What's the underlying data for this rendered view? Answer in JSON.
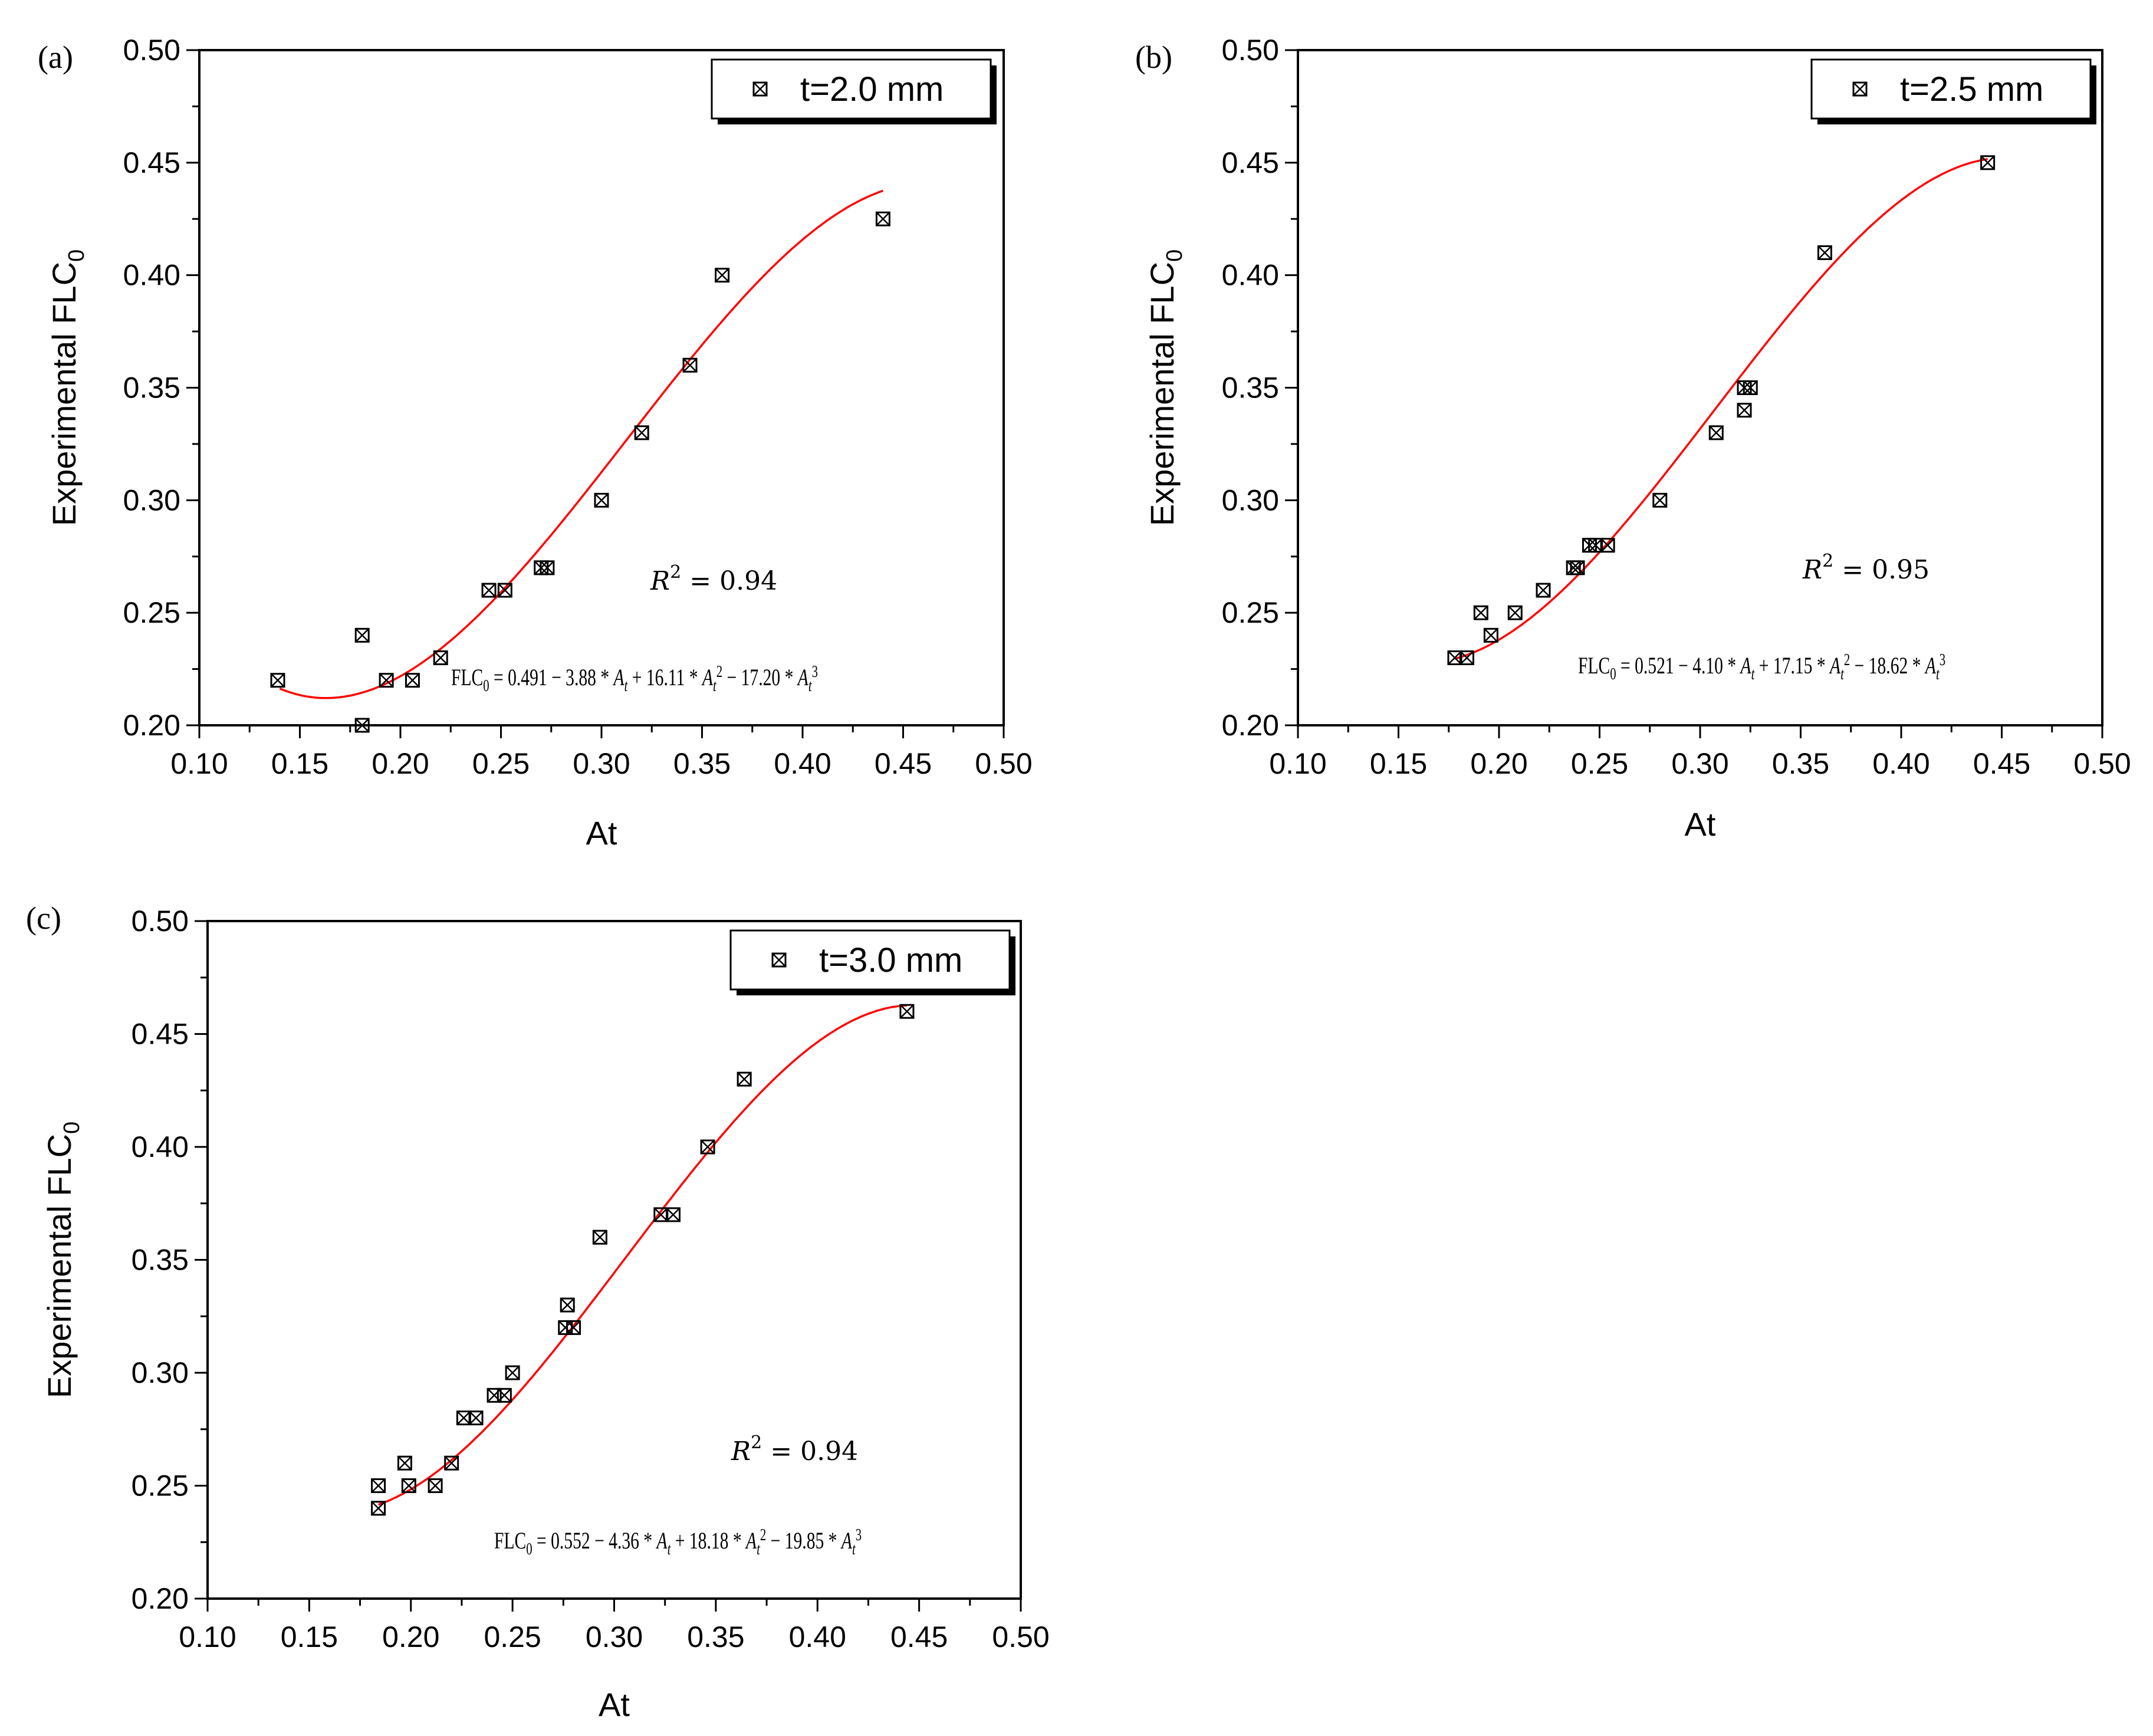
{
  "chart_data": [
    {
      "type": "scatter",
      "panel_label": "(a)",
      "legend": "t=2.0 mm",
      "legend_position": "top-right",
      "xlabel": "At",
      "ylabel_main": "Experimental FLC",
      "ylabel_sub": "0",
      "xlim": [
        0.1,
        0.5
      ],
      "ylim": [
        0.2,
        0.5
      ],
      "xticks": [
        "0.10",
        "0.15",
        "0.20",
        "0.25",
        "0.30",
        "0.35",
        "0.40",
        "0.45",
        "0.50"
      ],
      "yticks": [
        "0.20",
        "0.25",
        "0.30",
        "0.35",
        "0.40",
        "0.45",
        "0.50"
      ],
      "r2_label": "R",
      "r2_exp": "2",
      "r2_value": "= 0.94",
      "equation": {
        "lhs": "FLC",
        "lhs_sub": "0",
        "c0": "0.491",
        "c1": "3.88",
        "c2": "16.11",
        "c3": "17.20",
        "var": "A",
        "var_sub": "t"
      },
      "fit": {
        "coeffs": [
          0.491,
          -3.88,
          16.11,
          -17.2
        ],
        "x_range": [
          0.14,
          0.44
        ]
      },
      "points": [
        [
          0.139,
          0.22
        ],
        [
          0.181,
          0.24
        ],
        [
          0.181,
          0.2
        ],
        [
          0.193,
          0.22
        ],
        [
          0.206,
          0.22
        ],
        [
          0.22,
          0.23
        ],
        [
          0.244,
          0.26
        ],
        [
          0.252,
          0.26
        ],
        [
          0.27,
          0.27
        ],
        [
          0.273,
          0.27
        ],
        [
          0.3,
          0.3
        ],
        [
          0.32,
          0.33
        ],
        [
          0.344,
          0.36
        ],
        [
          0.36,
          0.4
        ],
        [
          0.44,
          0.425
        ]
      ]
    },
    {
      "type": "scatter",
      "panel_label": "(b)",
      "legend": "t=2.5 mm",
      "legend_position": "top-right",
      "xlabel": "At",
      "ylabel_main": "Experimental FLC",
      "ylabel_sub": "0",
      "xlim": [
        0.1,
        0.5
      ],
      "ylim": [
        0.2,
        0.5
      ],
      "xticks": [
        "0.10",
        "0.15",
        "0.20",
        "0.25",
        "0.30",
        "0.35",
        "0.40",
        "0.45",
        "0.50"
      ],
      "yticks": [
        "0.20",
        "0.25",
        "0.30",
        "0.35",
        "0.40",
        "0.45",
        "0.50"
      ],
      "r2_label": "R",
      "r2_exp": "2",
      "r2_value": "= 0.95",
      "equation": {
        "lhs": "FLC",
        "lhs_sub": "0",
        "c0": "0.521",
        "c1": "4.10",
        "c2": "17.15",
        "c3": "18.62",
        "var": "A",
        "var_sub": "t"
      },
      "fit": {
        "coeffs": [
          0.521,
          -4.1,
          17.15,
          -18.62
        ],
        "x_range": [
          0.178,
          0.443
        ]
      },
      "points": [
        [
          0.178,
          0.23
        ],
        [
          0.184,
          0.23
        ],
        [
          0.191,
          0.25
        ],
        [
          0.196,
          0.24
        ],
        [
          0.208,
          0.25
        ],
        [
          0.222,
          0.26
        ],
        [
          0.237,
          0.27
        ],
        [
          0.239,
          0.27
        ],
        [
          0.245,
          0.28
        ],
        [
          0.248,
          0.28
        ],
        [
          0.254,
          0.28
        ],
        [
          0.28,
          0.3
        ],
        [
          0.308,
          0.33
        ],
        [
          0.322,
          0.35
        ],
        [
          0.322,
          0.34
        ],
        [
          0.325,
          0.35
        ],
        [
          0.362,
          0.41
        ],
        [
          0.443,
          0.45
        ]
      ]
    },
    {
      "type": "scatter",
      "panel_label": "(c)",
      "legend": "t=3.0 mm",
      "legend_position": "top-right",
      "xlabel": "At",
      "ylabel_main": "Experimental FLC",
      "ylabel_sub": "0",
      "xlim": [
        0.1,
        0.5
      ],
      "ylim": [
        0.2,
        0.5
      ],
      "xticks": [
        "0.10",
        "0.15",
        "0.20",
        "0.25",
        "0.30",
        "0.35",
        "0.40",
        "0.45",
        "0.50"
      ],
      "yticks": [
        "0.20",
        "0.25",
        "0.30",
        "0.35",
        "0.40",
        "0.45",
        "0.50"
      ],
      "r2_label": "R",
      "r2_exp": "2",
      "r2_value": "= 0.94",
      "equation": {
        "lhs": "FLC",
        "lhs_sub": "0",
        "c0": "0.552",
        "c1": "4.36",
        "c2": "18.18",
        "c3": "19.85",
        "var": "A",
        "var_sub": "t"
      },
      "fit": {
        "coeffs": [
          0.552,
          -4.36,
          18.18,
          -19.85
        ],
        "x_range": [
          0.184,
          0.444
        ]
      },
      "points": [
        [
          0.184,
          0.25
        ],
        [
          0.184,
          0.24
        ],
        [
          0.197,
          0.26
        ],
        [
          0.199,
          0.25
        ],
        [
          0.212,
          0.25
        ],
        [
          0.22,
          0.26
        ],
        [
          0.226,
          0.28
        ],
        [
          0.232,
          0.28
        ],
        [
          0.241,
          0.29
        ],
        [
          0.246,
          0.29
        ],
        [
          0.25,
          0.3
        ],
        [
          0.276,
          0.32
        ],
        [
          0.277,
          0.33
        ],
        [
          0.28,
          0.32
        ],
        [
          0.293,
          0.36
        ],
        [
          0.323,
          0.37
        ],
        [
          0.329,
          0.37
        ],
        [
          0.346,
          0.4
        ],
        [
          0.364,
          0.43
        ],
        [
          0.444,
          0.46
        ]
      ]
    }
  ],
  "colors": {
    "fit_line": "#ff0000",
    "axes": "#000000",
    "marker": "#000000"
  }
}
